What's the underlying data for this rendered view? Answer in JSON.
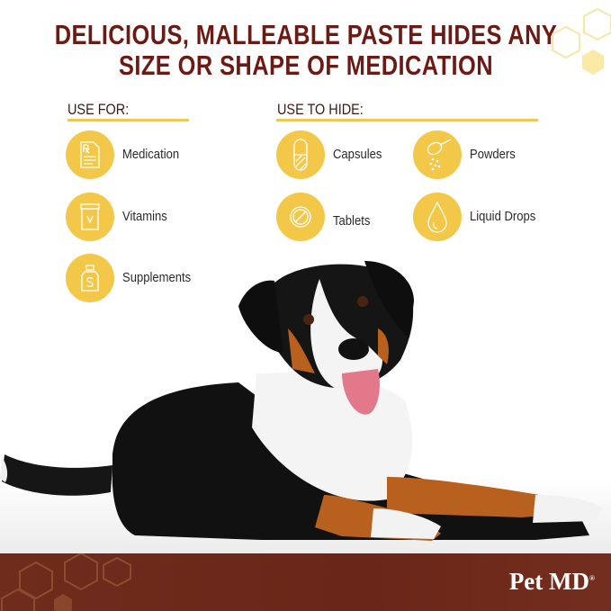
{
  "headline": {
    "line1": "DELICIOUS, MALLEABLE PASTE HIDES ANY",
    "line2": "SIZE OR SHAPE OF MEDICATION"
  },
  "use_for": {
    "heading": "USE FOR:",
    "items": [
      {
        "label": "Medication",
        "icon": "prescription-icon"
      },
      {
        "label": "Vitamins",
        "icon": "vitamin-jar-icon"
      },
      {
        "label": "Supplements",
        "icon": "supplement-bottle-icon"
      }
    ]
  },
  "use_to_hide": {
    "heading": "USE TO HIDE:",
    "items": [
      {
        "label": "Capsules",
        "icon": "capsule-icon"
      },
      {
        "label": "Powders",
        "icon": "powder-spoon-icon"
      },
      {
        "label": "Tablets",
        "icon": "tablet-icon"
      },
      {
        "label": "Liquid Drops",
        "icon": "drop-icon"
      }
    ]
  },
  "brand": {
    "name": "Pet MD",
    "mark": "®"
  },
  "colors": {
    "headline": "#6b1a14",
    "accent": "#f3c747",
    "band": "#6e2a1c"
  }
}
